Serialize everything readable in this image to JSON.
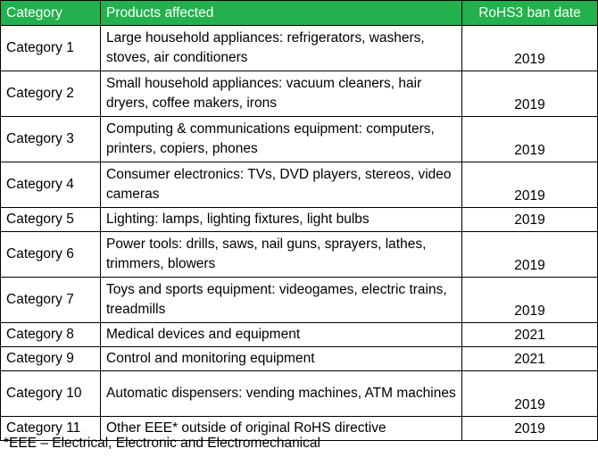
{
  "table": {
    "headers": [
      "Category",
      "Products affected",
      "RoHS3 ban date"
    ],
    "rows": [
      {
        "category": "Category 1",
        "products": "Large household appliances: refrigerators, washers, stoves, air conditioners",
        "date": "2019"
      },
      {
        "category": "Category 2",
        "products": "Small household appliances: vacuum cleaners, hair dryers, coffee makers, irons",
        "date": "2019"
      },
      {
        "category": "Category 3",
        "products": "Computing & communications equipment: computers, printers, copiers, phones",
        "date": "2019"
      },
      {
        "category": "Category 4",
        "products": "Consumer electronics: TVs, DVD players, stereos, video cameras",
        "date": "2019"
      },
      {
        "category": "Category 5",
        "products": "Lighting: lamps, lighting fixtures, light bulbs",
        "date": "2019"
      },
      {
        "category": "Category 6",
        "products": "Power tools: drills, saws, nail guns, sprayers, lathes, trimmers, blowers",
        "date": "2019"
      },
      {
        "category": "Category 7",
        "products": "Toys and sports equipment: videogames, electric trains, treadmills",
        "date": "2019"
      },
      {
        "category": "Category 8",
        "products": "Medical devices and equipment",
        "date": "2021"
      },
      {
        "category": "Category 9",
        "products": "Control and monitoring equipment",
        "date": "2021"
      },
      {
        "category": "Category 10",
        "products": "Automatic dispensers: vending machines, ATM machines",
        "date": "2019"
      },
      {
        "category": "Category 11",
        "products": "Other EEE* outside of original RoHS directive",
        "date": "2019"
      }
    ]
  },
  "footnote": "*EEE – Electrical, Electronic and Electromechanical",
  "colors": {
    "header_bg": "#22b14c",
    "header_text": "#ffffff",
    "border": "#000000"
  }
}
